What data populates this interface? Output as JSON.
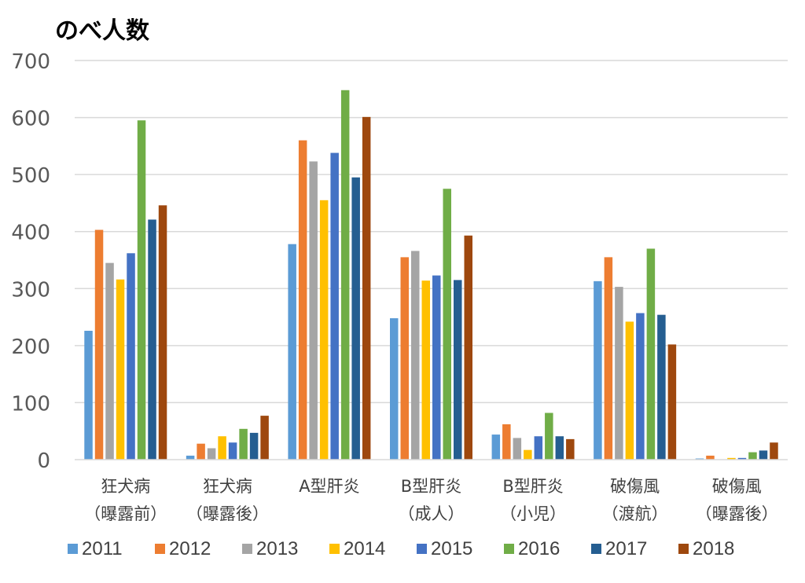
{
  "chart_data": {
    "type": "bar",
    "title": "のべ人数",
    "xlabel": "",
    "ylabel": "",
    "ylim": [
      0,
      700
    ],
    "yticks": [
      0,
      100,
      200,
      300,
      400,
      500,
      600,
      700
    ],
    "grid": true,
    "legend_position": "bottom",
    "categories": [
      [
        "狂犬病",
        "（曝露前）"
      ],
      [
        "狂犬病",
        "（曝露後）"
      ],
      [
        "A型肝炎"
      ],
      [
        "B型肝炎",
        "（成人）"
      ],
      [
        "B型肝炎",
        "（小児）"
      ],
      [
        "破傷風",
        "（渡航）"
      ],
      [
        "破傷風",
        "（曝露後）"
      ]
    ],
    "series": [
      {
        "name": "2011",
        "color": "#5B9BD5",
        "values": [
          226,
          7,
          378,
          248,
          44,
          313,
          2
        ]
      },
      {
        "name": "2012",
        "color": "#ED7D31",
        "values": [
          403,
          28,
          560,
          355,
          62,
          355,
          7
        ]
      },
      {
        "name": "2013",
        "color": "#A5A5A5",
        "values": [
          345,
          20,
          523,
          366,
          38,
          303,
          0
        ]
      },
      {
        "name": "2014",
        "color": "#FFC000",
        "values": [
          316,
          41,
          455,
          314,
          17,
          242,
          3
        ]
      },
      {
        "name": "2015",
        "color": "#4472C4",
        "values": [
          362,
          30,
          538,
          323,
          41,
          257,
          3
        ]
      },
      {
        "name": "2016",
        "color": "#70AD47",
        "values": [
          595,
          54,
          648,
          475,
          82,
          370,
          13
        ]
      },
      {
        "name": "2017",
        "color": "#255E91",
        "values": [
          421,
          47,
          495,
          315,
          41,
          254,
          16
        ]
      },
      {
        "name": "2018",
        "color": "#9E480E",
        "values": [
          446,
          77,
          601,
          393,
          36,
          202,
          30
        ]
      }
    ]
  }
}
